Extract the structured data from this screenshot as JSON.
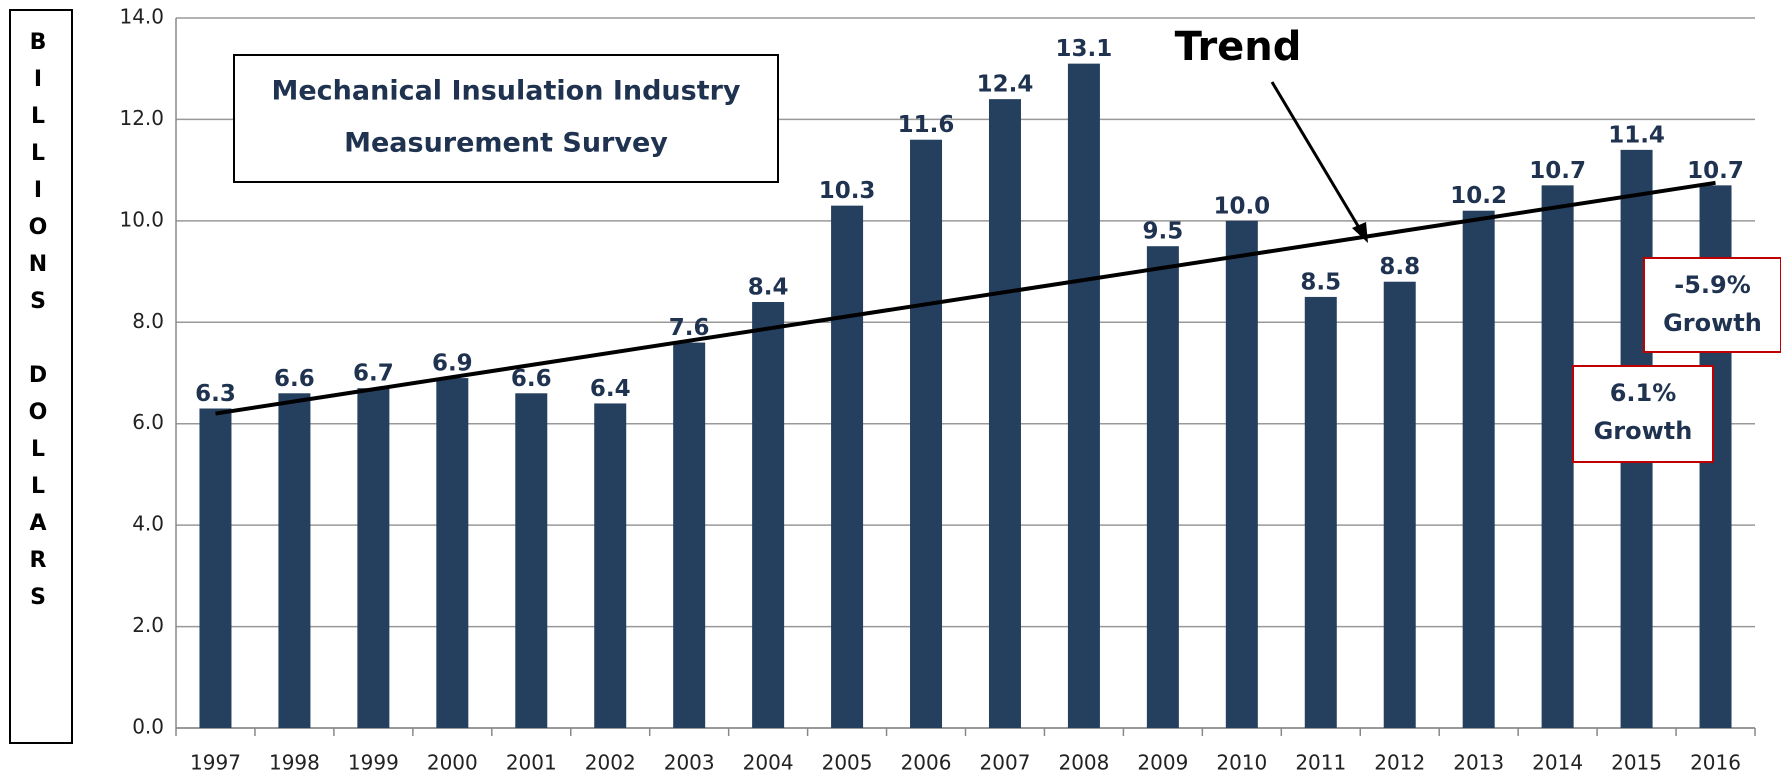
{
  "chart_data": {
    "type": "bar",
    "title": [
      "Mechanical Insulation Industry",
      "Measurement Survey"
    ],
    "y_label": "BILLIONS DOLLARS",
    "categories": [
      "1997",
      "1998",
      "1999",
      "2000",
      "2001",
      "2002",
      "2003",
      "2004",
      "2005",
      "2006",
      "2007",
      "2008",
      "2009",
      "2010",
      "2011",
      "2012",
      "2013",
      "2014",
      "2015",
      "2016"
    ],
    "values": [
      6.3,
      6.6,
      6.7,
      6.9,
      6.6,
      6.4,
      7.6,
      8.4,
      10.3,
      11.6,
      12.4,
      13.1,
      9.5,
      10.0,
      8.5,
      8.8,
      10.2,
      10.7,
      11.4,
      10.7
    ],
    "value_labels": [
      "6.3",
      "6.6",
      "6.7",
      "6.9",
      "6.6",
      "6.4",
      "7.6",
      "8.4",
      "10.3",
      "11.6",
      "12.4",
      "13.1",
      "9.5",
      "10.0",
      "8.5",
      "8.8",
      "10.2",
      "10.7",
      "11.4",
      "10.7"
    ],
    "color": "#253f5f",
    "ylim": [
      0,
      14
    ],
    "yticks": [
      {
        "value": 0,
        "label": "0.0"
      },
      {
        "value": 2,
        "label": "2.0"
      },
      {
        "value": 4,
        "label": "4.0"
      },
      {
        "value": 6,
        "label": "6.0"
      },
      {
        "value": 8,
        "label": "8.0"
      },
      {
        "value": 10,
        "label": "10.0"
      },
      {
        "value": 12,
        "label": "12.0"
      },
      {
        "value": 14,
        "label": "14.0"
      }
    ],
    "grid": true,
    "trend": {
      "label": "Trend",
      "values": [
        6.2,
        10.75
      ]
    },
    "annotations": [
      {
        "lines": [
          "-5.9%",
          "Growth"
        ]
      },
      {
        "lines": [
          "6.1%",
          "Growth"
        ]
      }
    ]
  }
}
